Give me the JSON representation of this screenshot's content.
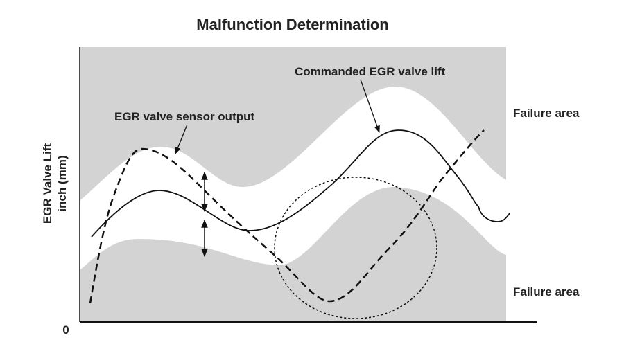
{
  "title": "Malfunction Determination",
  "y_axis": {
    "label_lines": [
      "EGR Valve Lift",
      "inch (mm)"
    ],
    "origin_label": "0"
  },
  "annotations": {
    "commanded": "Commanded EGR valve lift",
    "sensor": "EGR valve sensor output"
  },
  "regions": {
    "upper": "Failure area",
    "lower": "Failure area"
  }
}
